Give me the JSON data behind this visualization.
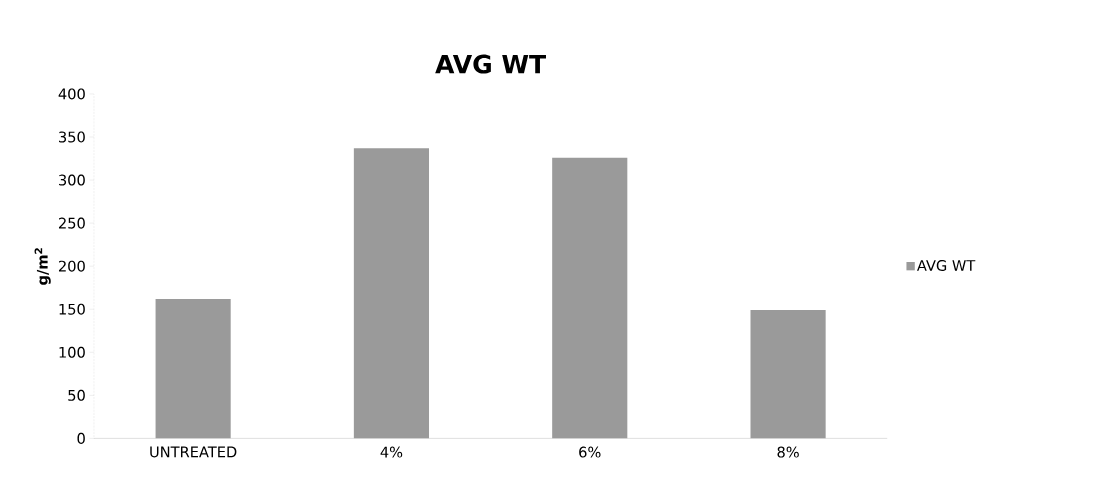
{
  "chart_data": {
    "type": "bar",
    "title": "AVG WT",
    "ylabel": "g/m$^{2}$",
    "categories": [
      "UNTREATED",
      "4%",
      "6%",
      "8%"
    ],
    "series": [
      {
        "name": "AVG WT",
        "color": "#9a9a9a",
        "values": [
          162,
          337,
          326,
          149
        ]
      }
    ],
    "ylim": [
      0,
      400
    ],
    "yticks": [
      0,
      50,
      100,
      150,
      200,
      250,
      300,
      350,
      400
    ],
    "grid": false,
    "legend": "right"
  }
}
